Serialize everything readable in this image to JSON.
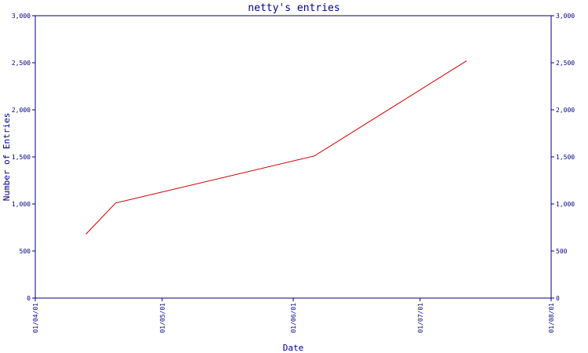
{
  "chart_data": {
    "type": "line",
    "title": "netty's entries",
    "xlabel": "Date",
    "ylabel": "Number of Entries",
    "x_ticks": [
      "01/04/01",
      "01/05/01",
      "01/06/01",
      "01/07/01",
      "01/08/01"
    ],
    "x_tick_dates": [
      "2001-04-01",
      "2001-05-01",
      "2001-06-01",
      "2001-07-01",
      "2001-08-01"
    ],
    "y_ticks": [
      "0",
      "500",
      "1,000",
      "1,500",
      "2,000",
      "2,500",
      "3,000"
    ],
    "y_tick_values": [
      0,
      500,
      1000,
      1500,
      2000,
      2500,
      3000
    ],
    "ylim": [
      0,
      3000
    ],
    "xlim": [
      "2001-04-01",
      "2001-08-01"
    ],
    "grid": false,
    "series": [
      {
        "color": "#cc0000",
        "points": [
          {
            "x": "2001-04-13",
            "y": 680
          },
          {
            "x": "2001-04-20",
            "y": 1010
          },
          {
            "x": "2001-06-06",
            "y": 1510
          },
          {
            "x": "2001-07-12",
            "y": 2520
          }
        ]
      }
    ],
    "colors": {
      "axis": "#000080",
      "line": "#cc0000",
      "background": "#ffffff"
    }
  }
}
